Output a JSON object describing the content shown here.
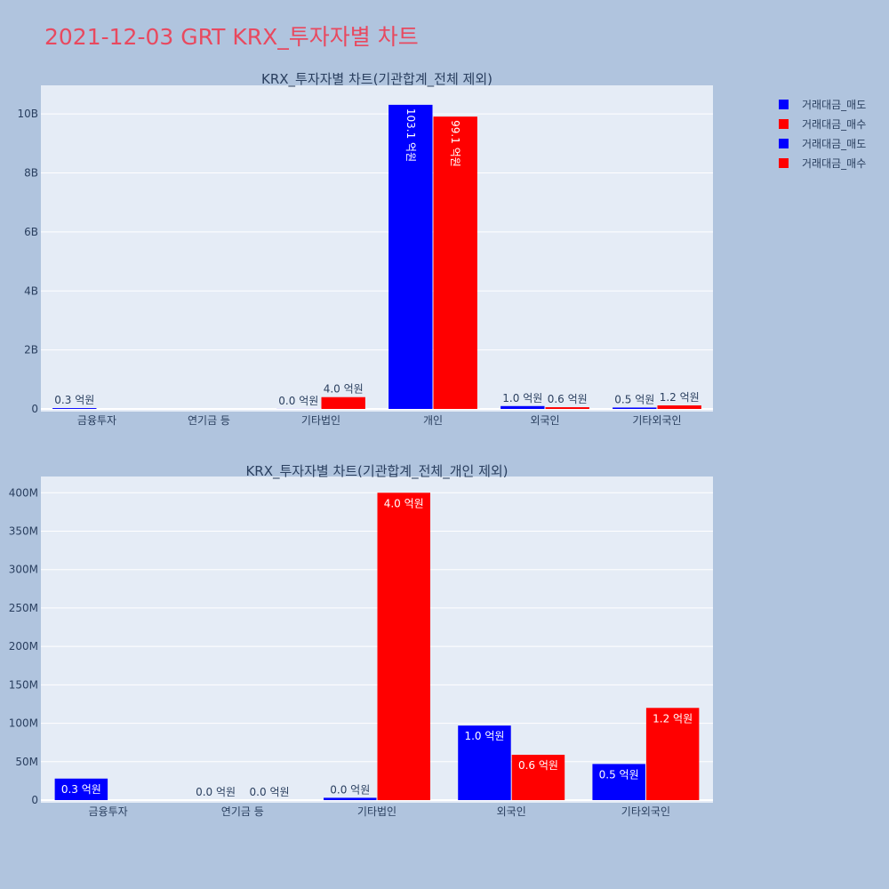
{
  "page": {
    "title": "2021-12-03 GRT KRX_투자자별 차트"
  },
  "legend": {
    "items": [
      {
        "label": "거래대금_매도",
        "color": "#0000ff"
      },
      {
        "label": "거래대금_매수",
        "color": "#ff0000"
      },
      {
        "label": "거래대금_매도",
        "color": "#0000ff"
      },
      {
        "label": "거래대금_매수",
        "color": "#ff0000"
      }
    ]
  },
  "colors": {
    "sell": "#0000ff",
    "buy": "#ff0000",
    "plot_bg": "#e5ecf6",
    "axis_text": "#2a3f5f"
  },
  "chart_data": [
    {
      "type": "bar",
      "title": "KRX_투자자별 차트(기관합계_전체 제외)",
      "categories": [
        "금융투자",
        "연기금 등",
        "기타법인",
        "개인",
        "외국인",
        "기타외국인"
      ],
      "ylim": [
        0,
        11000000000
      ],
      "yticks": [
        0,
        2000000000,
        4000000000,
        6000000000,
        8000000000,
        10000000000
      ],
      "ytick_labels": [
        "0",
        "2B",
        "4B",
        "6B",
        "8B",
        "10B"
      ],
      "series": [
        {
          "name": "거래대금_매도",
          "values": [
            28000000,
            0,
            3000000,
            10310000000,
            97000000,
            47000000
          ],
          "labels": [
            "0.3 억원",
            "",
            "0.0 억원",
            "103.1 억원",
            "1.0 억원",
            "0.5 억원"
          ]
        },
        {
          "name": "거래대금_매수",
          "values": [
            0,
            0,
            400000000,
            9910000000,
            59000000,
            120000000
          ],
          "labels": [
            "",
            "",
            "4.0 억원",
            "99.1 억원",
            "0.6 억원",
            "1.2 억원"
          ]
        }
      ]
    },
    {
      "type": "bar",
      "title": "KRX_투자자별 차트(기관합계_전체_개인 제외)",
      "categories": [
        "금융투자",
        "연기금 등",
        "기타법인",
        "외국인",
        "기타외국인"
      ],
      "ylim": [
        0,
        420000000
      ],
      "yticks": [
        0,
        50000000,
        100000000,
        150000000,
        200000000,
        250000000,
        300000000,
        350000000,
        400000000
      ],
      "ytick_labels": [
        "0",
        "50M",
        "100M",
        "150M",
        "200M",
        "250M",
        "300M",
        "350M",
        "400M"
      ],
      "series": [
        {
          "name": "거래대금_매도",
          "values": [
            28000000,
            0,
            3000000,
            97000000,
            47000000
          ],
          "labels": [
            "0.3 억원",
            "0.0 억원",
            "0.0 억원",
            "1.0 억원",
            "0.5 억원"
          ]
        },
        {
          "name": "거래대금_매수",
          "values": [
            0,
            0,
            400000000,
            59000000,
            120000000
          ],
          "labels": [
            "",
            "0.0 억원",
            "4.0 억원",
            "0.6 억원",
            "1.2 억원"
          ]
        }
      ]
    }
  ]
}
